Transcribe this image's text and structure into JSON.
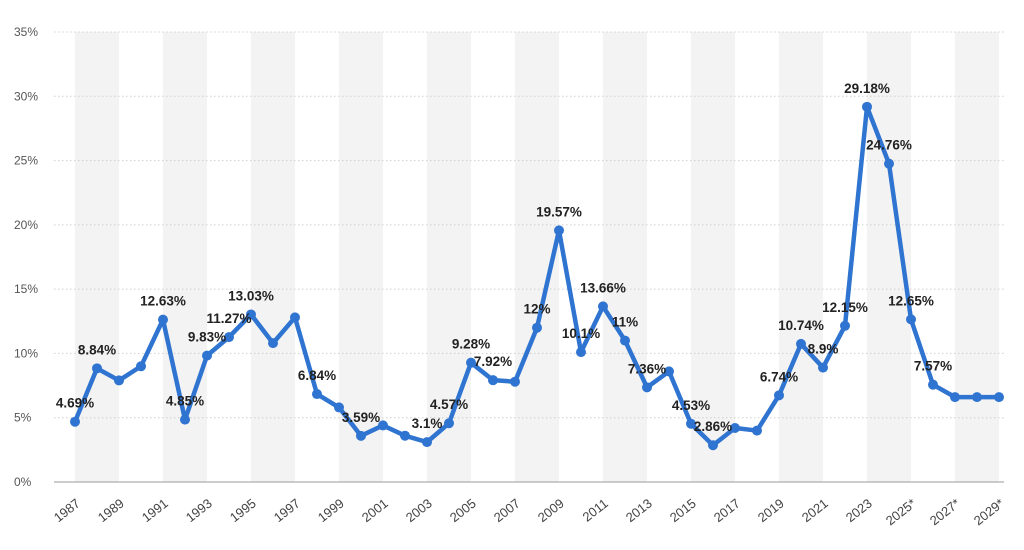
{
  "chart_data": {
    "type": "line",
    "title": "",
    "xlabel": "",
    "ylabel": "",
    "ylim": [
      0,
      35
    ],
    "y_ticks": [
      "0%",
      "5%",
      "10%",
      "15%",
      "20%",
      "25%",
      "30%",
      "35%"
    ],
    "x_tick_labels": [
      "1987",
      "1989",
      "1991",
      "1993",
      "1995",
      "1997",
      "1999",
      "2001",
      "2003",
      "2005",
      "2007",
      "2009",
      "2011",
      "2013",
      "2015",
      "2017",
      "2019",
      "2021",
      "2023",
      "2025*",
      "2027*",
      "2029*"
    ],
    "grid": true,
    "legend": "none",
    "colors": {
      "line": "#2f74d0",
      "band": "#f3f3f3",
      "grid": "#cfcfcf"
    },
    "series": [
      {
        "x": [
          1987,
          1988,
          1989,
          1990,
          1991,
          1992,
          1993,
          1994,
          1995,
          1996,
          1997,
          1998,
          1999,
          2000,
          2001,
          2002,
          2003,
          2004,
          2005,
          2006,
          2007,
          2008,
          2009,
          2010,
          2011,
          2012,
          2013,
          2014,
          2015,
          2016,
          2017,
          2018,
          2019,
          2020,
          2021,
          2022,
          2023,
          2024,
          2025,
          2026,
          2027,
          2028,
          2029
        ],
        "values": [
          4.69,
          8.84,
          7.9,
          9.0,
          12.63,
          4.85,
          9.83,
          11.27,
          13.03,
          10.8,
          12.8,
          6.84,
          5.8,
          3.59,
          4.4,
          3.6,
          3.1,
          4.57,
          9.28,
          7.92,
          7.8,
          12.0,
          19.57,
          10.1,
          13.66,
          11.0,
          7.36,
          8.6,
          4.53,
          2.86,
          4.2,
          4.0,
          6.74,
          10.74,
          8.9,
          12.15,
          29.18,
          24.76,
          12.65,
          7.57,
          6.6,
          6.6,
          6.6
        ]
      }
    ],
    "data_labels": [
      {
        "x": 1987,
        "text": "4.69%"
      },
      {
        "x": 1988,
        "text": "8.84%"
      },
      {
        "x": 1991,
        "text": "12.63%"
      },
      {
        "x": 1992,
        "text": "4.85%"
      },
      {
        "x": 1993,
        "text": "9.83%"
      },
      {
        "x": 1994,
        "text": "11.27%"
      },
      {
        "x": 1995,
        "text": "13.03%"
      },
      {
        "x": 1998,
        "text": "6.84%"
      },
      {
        "x": 2000,
        "text": "3.59%"
      },
      {
        "x": 2003,
        "text": "3.1%"
      },
      {
        "x": 2004,
        "text": "4.57%"
      },
      {
        "x": 2005,
        "text": "9.28%"
      },
      {
        "x": 2006,
        "text": "7.92%"
      },
      {
        "x": 2008,
        "text": "12%"
      },
      {
        "x": 2009,
        "text": "19.57%"
      },
      {
        "x": 2010,
        "text": "10.1%"
      },
      {
        "x": 2011,
        "text": "13.66%"
      },
      {
        "x": 2012,
        "text": "11%"
      },
      {
        "x": 2013,
        "text": "7.36%"
      },
      {
        "x": 2015,
        "text": "4.53%"
      },
      {
        "x": 2016,
        "text": "2.86%"
      },
      {
        "x": 2019,
        "text": "6.74%"
      },
      {
        "x": 2020,
        "text": "10.74%"
      },
      {
        "x": 2021,
        "text": "8.9%"
      },
      {
        "x": 2022,
        "text": "12.15%"
      },
      {
        "x": 2023,
        "text": "29.18%"
      },
      {
        "x": 2024,
        "text": "24.76%"
      },
      {
        "x": 2025,
        "text": "12.65%"
      },
      {
        "x": 2026,
        "text": "7.57%"
      }
    ]
  }
}
